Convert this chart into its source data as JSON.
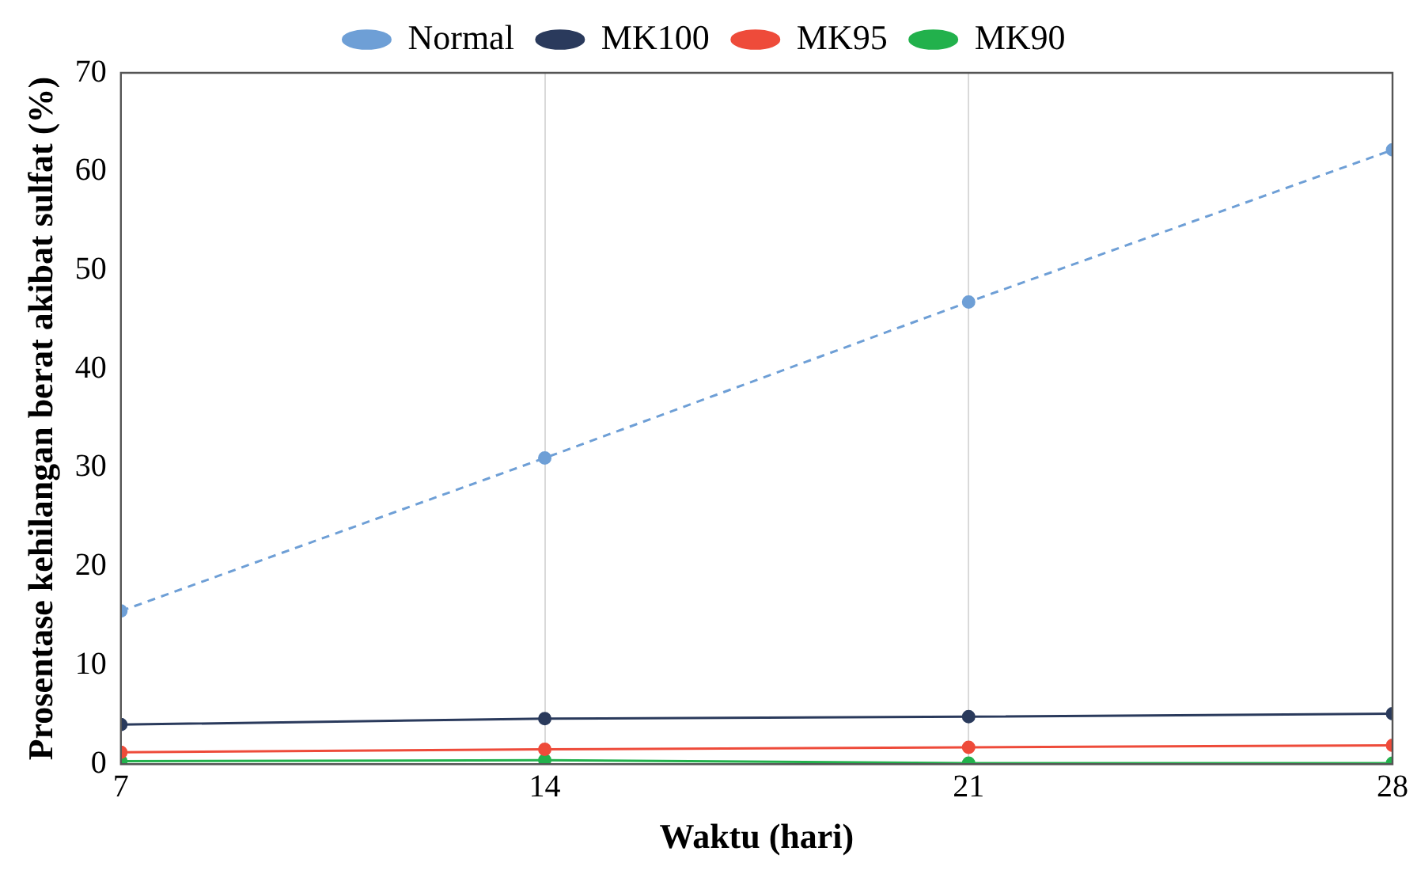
{
  "chart_data": {
    "type": "line",
    "xlabel": "Waktu (hari)",
    "ylabel": "Prosentase kehilangan berat akibat sulfat (%)",
    "x": [
      7,
      14,
      21,
      28
    ],
    "xlim": [
      7,
      28
    ],
    "xticks": [
      7,
      14,
      21,
      28
    ],
    "ylim": [
      0,
      70
    ],
    "yticks": [
      0,
      10,
      20,
      30,
      40,
      50,
      60,
      70
    ],
    "grid": "x",
    "legend": "top",
    "marker": "circle",
    "series": [
      {
        "name": "Normal",
        "color": "#6e9fd6",
        "values": [
          15.5,
          31,
          46.8,
          62.2
        ],
        "line_style": "dashed"
      },
      {
        "name": "MK100",
        "color": "#2a3a5c",
        "values": [
          4.0,
          4.6,
          4.8,
          5.1
        ]
      },
      {
        "name": "MK95",
        "color": "#ee4b3a",
        "values": [
          1.2,
          1.5,
          1.7,
          1.9
        ]
      },
      {
        "name": "MK90",
        "color": "#22b14c",
        "values": [
          0.3,
          0.4,
          0.1,
          0.1
        ]
      }
    ]
  }
}
